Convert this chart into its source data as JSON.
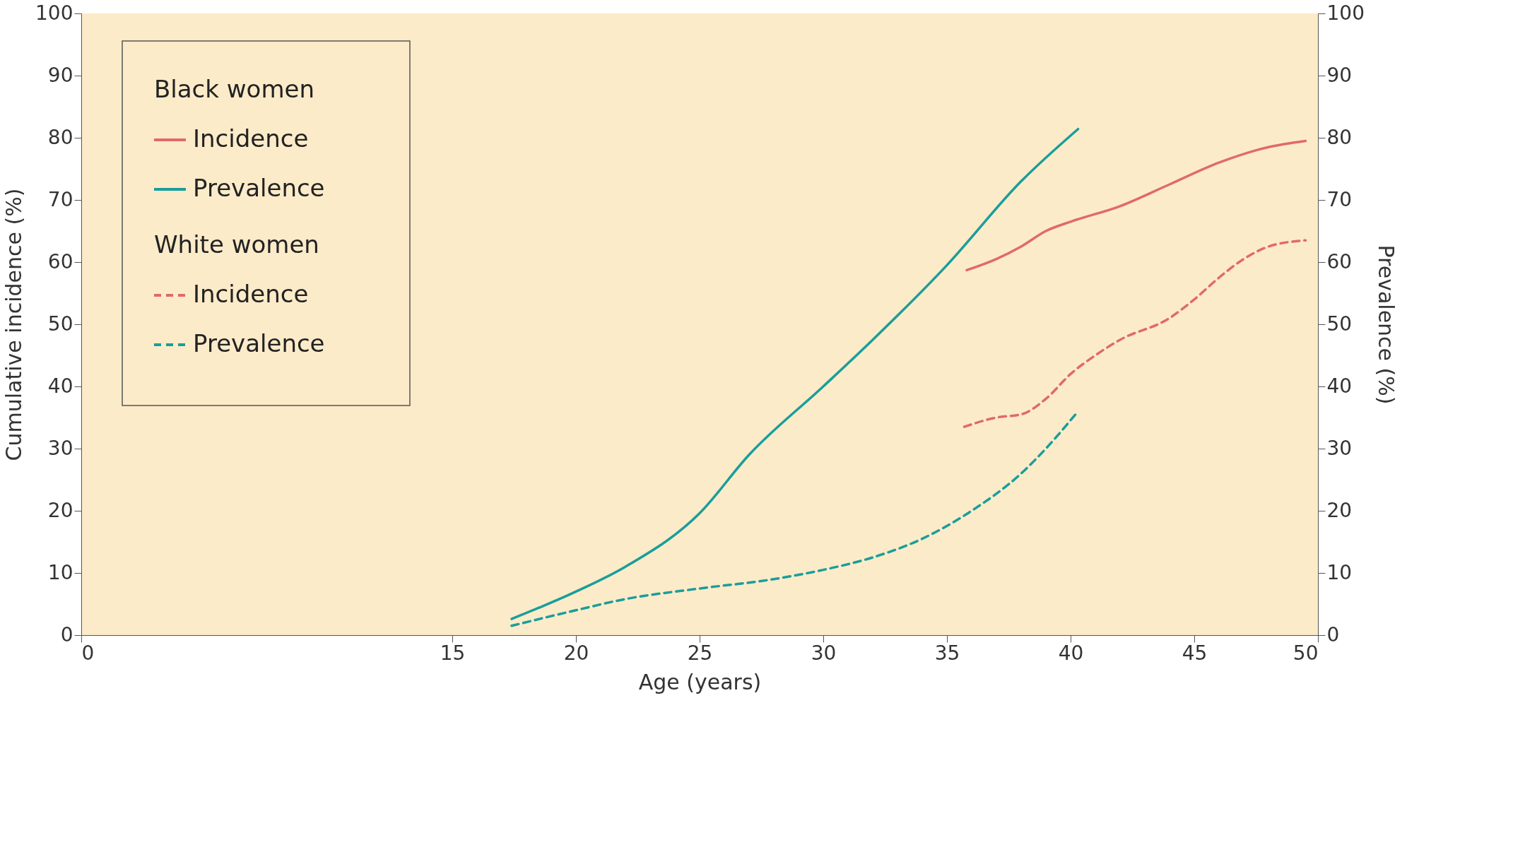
{
  "chart_data": {
    "type": "line",
    "xlabel": "Age (years)",
    "ylabel": "Cumulative incidence (%)",
    "y2label": "Prevalence (%)",
    "xlim": [
      0,
      50
    ],
    "xticks": [
      0,
      15,
      20,
      25,
      30,
      35,
      40,
      45,
      50
    ],
    "ylim": [
      0,
      100
    ],
    "yticks": [
      0,
      10,
      20,
      30,
      40,
      50,
      60,
      70,
      80,
      90,
      100
    ],
    "y2lim": [
      0,
      100
    ],
    "y2ticks": [
      0,
      10,
      20,
      30,
      40,
      50,
      60,
      70,
      80,
      90,
      100
    ],
    "legend": "top left",
    "grid": false,
    "marker": "none",
    "annotations": [
      "Black women",
      "White women"
    ],
    "series": [
      {
        "name": "Incidence",
        "color": "#e06a6a",
        "line_style": "solid",
        "x": [
          35.8,
          37,
          38,
          39,
          40,
          42,
          44,
          46,
          48,
          49.5
        ],
        "values": [
          58.7,
          60.5,
          62.5,
          65,
          66.5,
          69,
          72.5,
          76,
          78.5,
          79.5
        ]
      },
      {
        "name": "Prevalence",
        "color": "#1a9e9a",
        "line_style": "solid",
        "axis": "y2",
        "x": [
          17.4,
          20,
          22,
          25,
          27,
          30,
          32,
          35,
          38,
          40.3
        ],
        "values": [
          2.6,
          7,
          11,
          19.6,
          29,
          40,
          47.5,
          59.5,
          73,
          81.4
        ]
      },
      {
        "name": "Incidence",
        "color": "#e06a6a",
        "line_style": "dashed",
        "x": [
          35.7,
          37,
          38,
          39,
          40,
          41,
          42,
          44,
          45,
          46,
          47,
          48,
          49.5
        ],
        "values": [
          33.5,
          35,
          35.5,
          38,
          42,
          45,
          47.5,
          51,
          54,
          57.5,
          60.5,
          62.5,
          63.5
        ]
      },
      {
        "name": "Prevalence",
        "color": "#1a9e9a",
        "line_style": "dashed",
        "axis": "y2",
        "x": [
          17.4,
          20,
          22,
          25,
          28,
          30,
          32,
          34,
          36,
          38,
          39,
          40.3
        ],
        "values": [
          1.5,
          4,
          5.8,
          7.5,
          9,
          10.5,
          12.5,
          15.5,
          20,
          26,
          30,
          36
        ]
      }
    ]
  }
}
